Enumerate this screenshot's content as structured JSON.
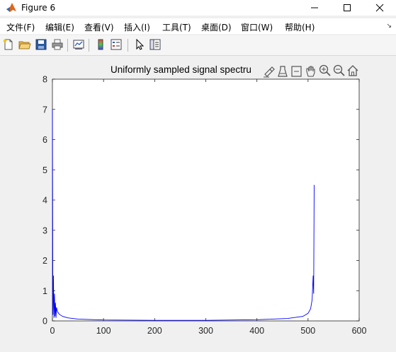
{
  "window": {
    "title": "Figure 6"
  },
  "menu": {
    "items": [
      "文件(F)",
      "编辑(E)",
      "查看(V)",
      "插入(I)",
      "工具(T)",
      "桌面(D)",
      "窗口(W)",
      "帮助(H)"
    ]
  },
  "toolbar": {
    "buttons": [
      "new-figure",
      "open-file",
      "save",
      "print",
      "link-plot",
      "insert-colorbar",
      "insert-legend",
      "edit-plot",
      "property-inspector"
    ]
  },
  "axes_toolbar": {
    "buttons": [
      "brush",
      "data-tips",
      "rotate",
      "pan",
      "zoom-in",
      "zoom-out",
      "restore-view"
    ]
  },
  "chart_data": {
    "type": "line",
    "title": "Uniformly sampled signal spectru",
    "xlabel": "",
    "ylabel": "",
    "xlim": [
      0,
      600
    ],
    "ylim": [
      0,
      8
    ],
    "xticks": [
      0,
      100,
      200,
      300,
      400,
      500,
      600
    ],
    "yticks": [
      0,
      1,
      2,
      3,
      4,
      5,
      6,
      7,
      8
    ],
    "grid": false,
    "line_color": "#0000ff",
    "series": [
      {
        "x": [
          0,
          1,
          2,
          3,
          4,
          5,
          6,
          7,
          8,
          10,
          12,
          15,
          20,
          30,
          50,
          100,
          200,
          300,
          400,
          460,
          490,
          500,
          505,
          508,
          510,
          511,
          512
        ],
        "values": [
          7.0,
          0.2,
          1.5,
          0.1,
          0.9,
          0.15,
          0.6,
          0.1,
          0.45,
          0.3,
          0.25,
          0.2,
          0.15,
          0.1,
          0.06,
          0.03,
          0.02,
          0.02,
          0.04,
          0.08,
          0.15,
          0.25,
          0.4,
          0.7,
          1.5,
          0.9,
          4.5
        ]
      }
    ]
  }
}
